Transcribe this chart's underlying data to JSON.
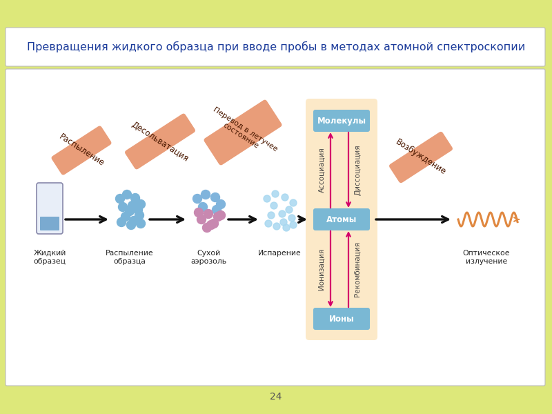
{
  "title": "Превращения жидкого образца при вводе пробы в методах атомной спектроскопии",
  "bg_outer": "#dde87a",
  "bg_white": "#ffffff",
  "arrow_color": "#111111",
  "pink_arrow": "#d4006a",
  "salmon_box": "#e8956e",
  "blue_box_fill": "#7ab8d4",
  "blue_box_text": "#ffffff",
  "center_box_fill": "#fce9c8",
  "center_box_stroke": "#e8c890",
  "step_labels": [
    "Жидкий\nобразец",
    "Распыление\nобразца",
    "Сухой\nаэрозоль",
    "Испарение"
  ],
  "rotated_labels": [
    "Распыление",
    "Десольватация",
    "Перевод в летучее\nсостояние",
    "Возбуждение"
  ],
  "box_labels": [
    "Молекулы",
    "Атомы",
    "Ионы"
  ],
  "vert_left_labels": [
    "Ассоциация",
    "Ионизация"
  ],
  "vert_right_labels": [
    "Диссоциация",
    "Рекомбинация"
  ],
  "final_label": "Оптическое\nизлучение",
  "wave_color": "#e08840",
  "page_num": "24",
  "title_color": "#1a3a9a",
  "label_color": "#222222",
  "vert_text_color": "#444444"
}
